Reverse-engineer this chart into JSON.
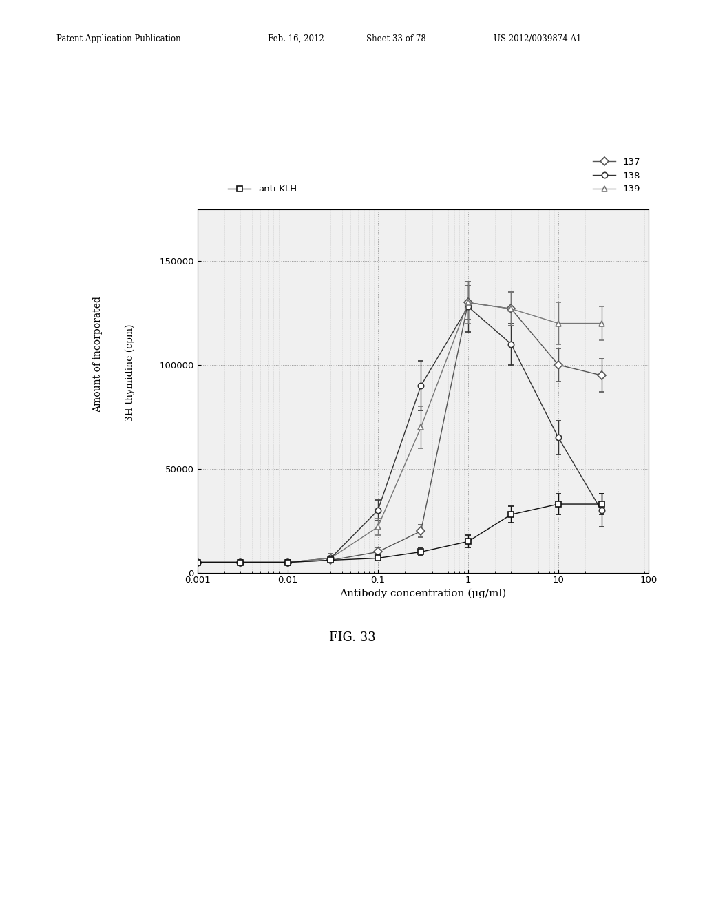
{
  "title": "FIG. 33",
  "xlabel": "Antibody concentration (μg/ml)",
  "ylabel_line1": "Amount of incorporated",
  "ylabel_line2": "3H-thymidine (cpm)",
  "ylim": [
    0,
    175000
  ],
  "yticks": [
    0,
    50000,
    100000,
    150000
  ],
  "series": {
    "137": {
      "x": [
        0.001,
        0.003,
        0.01,
        0.03,
        0.1,
        0.3,
        1.0,
        3.0,
        10.0,
        30.0
      ],
      "y": [
        5000,
        5000,
        5000,
        6000,
        10000,
        20000,
        130000,
        127000,
        100000,
        95000
      ],
      "yerr": [
        1000,
        1000,
        1000,
        1000,
        2000,
        3000,
        8000,
        8000,
        8000,
        8000
      ],
      "color": "#555555",
      "marker": "D",
      "label": "137",
      "linestyle": "-"
    },
    "138": {
      "x": [
        0.001,
        0.003,
        0.01,
        0.03,
        0.1,
        0.3,
        1.0,
        3.0,
        10.0,
        30.0
      ],
      "y": [
        5000,
        5000,
        5000,
        7000,
        30000,
        90000,
        128000,
        110000,
        65000,
        30000
      ],
      "yerr": [
        1000,
        1000,
        1000,
        2000,
        5000,
        12000,
        12000,
        10000,
        8000,
        8000
      ],
      "color": "#333333",
      "marker": "o",
      "label": "138",
      "linestyle": "-"
    },
    "139": {
      "x": [
        0.001,
        0.003,
        0.01,
        0.03,
        0.1,
        0.3,
        1.0,
        3.0,
        10.0,
        30.0
      ],
      "y": [
        5000,
        5000,
        5000,
        7000,
        22000,
        70000,
        130000,
        127000,
        120000,
        120000
      ],
      "yerr": [
        1000,
        1000,
        1000,
        2000,
        4000,
        10000,
        10000,
        8000,
        10000,
        8000
      ],
      "color": "#777777",
      "marker": "^",
      "label": "139",
      "linestyle": "-"
    },
    "anti-KLH": {
      "x": [
        0.001,
        0.003,
        0.01,
        0.03,
        0.1,
        0.3,
        1.0,
        3.0,
        10.0,
        30.0
      ],
      "y": [
        5000,
        5000,
        5000,
        6000,
        7000,
        10000,
        15000,
        28000,
        33000,
        33000
      ],
      "yerr": [
        1000,
        1000,
        1000,
        1000,
        1000,
        2000,
        3000,
        4000,
        5000,
        5000
      ],
      "color": "#111111",
      "marker": "s",
      "label": "anti-KLH",
      "linestyle": "-"
    }
  },
  "background_color": "#ffffff",
  "grid_color": "#999999",
  "figure_caption": "FIG. 33"
}
